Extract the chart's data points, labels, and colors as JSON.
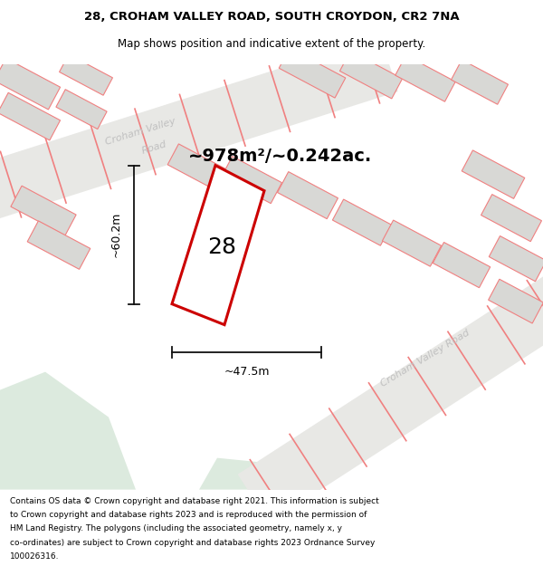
{
  "title_line1": "28, CROHAM VALLEY ROAD, SOUTH CROYDON, CR2 7NA",
  "title_line2": "Map shows position and indicative extent of the property.",
  "footer_lines": [
    "Contains OS data © Crown copyright and database right 2021. This information is subject",
    "to Crown copyright and database rights 2023 and is reproduced with the permission of",
    "HM Land Registry. The polygons (including the associated geometry, namely x, y",
    "co-ordinates) are subject to Crown copyright and database rights 2023 Ordnance Survey",
    "100026316."
  ],
  "area_text": "~978m²/~0.242ac.",
  "width_label": "~47.5m",
  "height_label": "~60.2m",
  "property_number": "28",
  "property_color": "#cc0000",
  "parcel_edge": "#f08080",
  "parcel_fill": "#f5f5f5",
  "road_fill": "#e8e8e5",
  "road_edge": "#f08080",
  "green_fill": "#dceade",
  "map_bg": "#fafaf8",
  "building_fill": "#d8d8d5",
  "building_edge": "#f08080",
  "road_label_color": "#c0c0c0",
  "dim_color": "#111111",
  "title_fs": 9.5,
  "subtitle_fs": 8.5,
  "footer_fs": 6.5,
  "area_fs": 14,
  "dim_fs": 9,
  "num_fs": 18
}
